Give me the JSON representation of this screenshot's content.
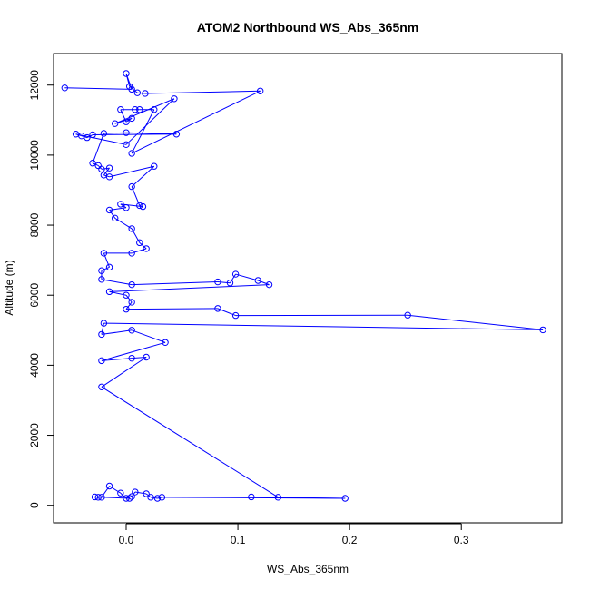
{
  "chart_data": {
    "type": "line",
    "title": "ATOM2 Northbound WS_Abs_365nm",
    "xlabel": "WS_Abs_365nm",
    "ylabel": "Altitude (m)",
    "xlim": [
      -0.065,
      0.39
    ],
    "ylim": [
      -500,
      12900
    ],
    "xticks": [
      0.0,
      0.1,
      0.2,
      0.3
    ],
    "xtick_labels": [
      "0.0",
      "0.1",
      "0.2",
      "0.3"
    ],
    "yticks": [
      0,
      2000,
      4000,
      6000,
      8000,
      10000,
      12000
    ],
    "ytick_labels": [
      "0",
      "2000",
      "4000",
      "6000",
      "8000",
      "10000",
      "12000"
    ],
    "grid": false,
    "series": [
      {
        "color": "#0000ff",
        "marker": "open-circle",
        "points": [
          [
            -0.055,
            11920
          ],
          [
            0.005,
            11880
          ],
          [
            0.0,
            12330
          ],
          [
            0.003,
            11960
          ],
          [
            0.01,
            11780
          ],
          [
            0.017,
            11760
          ],
          [
            0.12,
            11830
          ],
          [
            0.005,
            10050
          ],
          [
            0.025,
            11300
          ],
          [
            0.012,
            11300
          ],
          [
            0.008,
            11300
          ],
          [
            -0.005,
            11300
          ],
          [
            0.0,
            10950
          ],
          [
            0.005,
            11050
          ],
          [
            -0.01,
            10900
          ],
          [
            0.043,
            11610
          ],
          [
            0.0,
            10300
          ],
          [
            -0.045,
            10600
          ],
          [
            -0.04,
            10550
          ],
          [
            -0.035,
            10500
          ],
          [
            -0.03,
            10580
          ],
          [
            0.045,
            10600
          ],
          [
            0.0,
            10640
          ],
          [
            -0.02,
            10620
          ],
          [
            -0.03,
            9770
          ],
          [
            -0.025,
            9700
          ],
          [
            -0.022,
            9600
          ],
          [
            -0.015,
            9630
          ],
          [
            -0.02,
            9430
          ],
          [
            -0.015,
            9380
          ],
          [
            0.025,
            9680
          ],
          [
            0.005,
            9100
          ],
          [
            0.012,
            8560
          ],
          [
            0.015,
            8530
          ],
          [
            -0.005,
            8600
          ],
          [
            0.0,
            8500
          ],
          [
            -0.015,
            8430
          ],
          [
            -0.01,
            8200
          ],
          [
            0.005,
            7900
          ],
          [
            0.012,
            7500
          ],
          [
            0.018,
            7330
          ],
          [
            0.005,
            7200
          ],
          [
            -0.02,
            7200
          ],
          [
            -0.015,
            6800
          ],
          [
            -0.022,
            6700
          ],
          [
            -0.022,
            6450
          ],
          [
            0.005,
            6300
          ],
          [
            0.082,
            6380
          ],
          [
            0.093,
            6350
          ],
          [
            0.098,
            6600
          ],
          [
            0.118,
            6420
          ],
          [
            0.128,
            6300
          ],
          [
            -0.015,
            6100
          ],
          [
            0.0,
            6000
          ],
          [
            0.005,
            5800
          ],
          [
            0.0,
            5600
          ],
          [
            0.082,
            5620
          ],
          [
            0.098,
            5420
          ],
          [
            0.252,
            5430
          ],
          [
            0.373,
            5010
          ],
          [
            -0.02,
            5200
          ],
          [
            -0.022,
            4880
          ],
          [
            0.005,
            5000
          ],
          [
            0.035,
            4650
          ],
          [
            -0.022,
            4130
          ],
          [
            0.005,
            4200
          ],
          [
            0.018,
            4230
          ],
          [
            -0.022,
            3380
          ],
          [
            0.136,
            230
          ],
          [
            0.112,
            240
          ],
          [
            0.196,
            200
          ],
          [
            0.032,
            230
          ],
          [
            0.028,
            200
          ],
          [
            0.022,
            230
          ],
          [
            0.018,
            330
          ],
          [
            0.008,
            380
          ],
          [
            0.005,
            250
          ],
          [
            0.0,
            200
          ],
          [
            -0.005,
            350
          ],
          [
            -0.015,
            550
          ],
          [
            -0.022,
            230
          ],
          [
            -0.025,
            230
          ],
          [
            -0.028,
            240
          ],
          [
            0.003,
            200
          ]
        ]
      }
    ]
  }
}
